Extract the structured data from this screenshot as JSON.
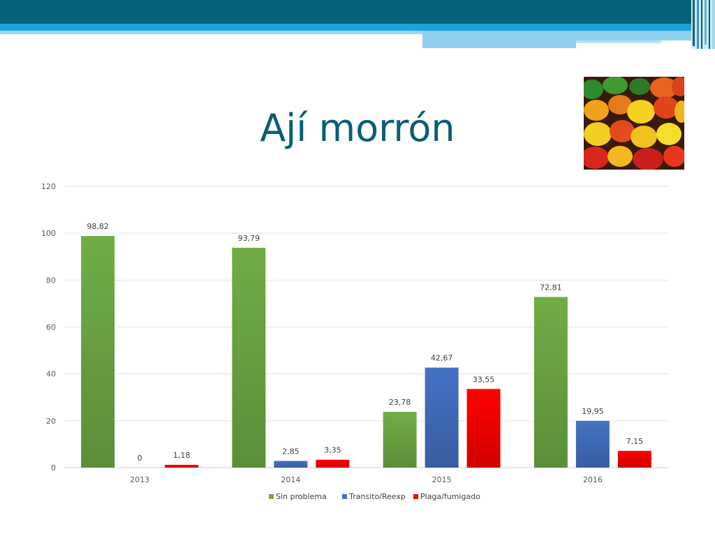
{
  "slide": {
    "title": "Ají morrón",
    "colors": {
      "title": "#0b5d78",
      "band_dark": "#06607a",
      "band_light": "#1aa3d6",
      "band_pale": "#8fd0ee"
    }
  },
  "photo": {
    "icon": "bell-peppers-photo"
  },
  "chart_data": {
    "type": "bar",
    "categories": [
      "2013",
      "2014",
      "2015",
      "2016"
    ],
    "series": [
      {
        "name": "Sin problema",
        "color": "#70ad47",
        "values": [
          98.82,
          93.79,
          23.78,
          72.81
        ],
        "labels": [
          "98,82",
          "93,79",
          "23,78",
          "72,81"
        ]
      },
      {
        "name": "Transito/Reexp",
        "color": "#4472c4",
        "values": [
          0,
          2.85,
          42.67,
          19.95
        ],
        "labels": [
          "0",
          "2,85",
          "42,67",
          "19,95"
        ]
      },
      {
        "name": "Plaga/fumigado",
        "color": "#ff0000",
        "values": [
          1.18,
          3.35,
          33.55,
          7.15
        ],
        "labels": [
          "1,18",
          "3,35",
          "33,55",
          "7,15"
        ]
      }
    ],
    "ylim": [
      0,
      120
    ],
    "yticks": [
      0,
      20,
      40,
      60,
      80,
      100,
      120
    ],
    "grid": true,
    "legend": "bottom"
  }
}
